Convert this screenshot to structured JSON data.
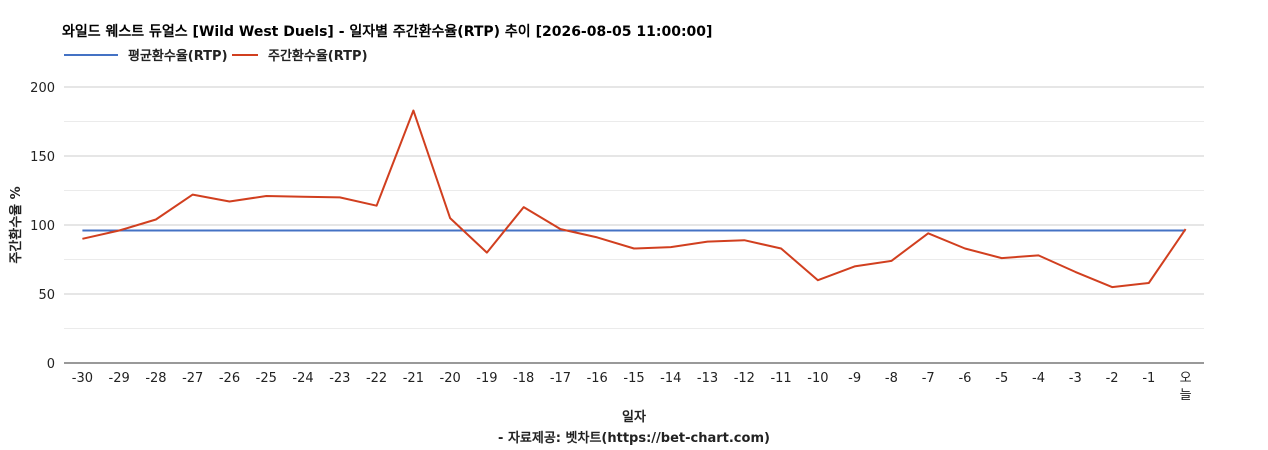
{
  "chart_data": {
    "type": "line",
    "title": "와일드 웨스트 듀얼스 [Wild West Duels] - 일자별 주간환수율(RTP) 추이 [2026-08-05 11:00:00]",
    "xlabel": "일자",
    "ylabel": "주간환수율 %",
    "source": "- 자료제공: 벳차트(https://bet-chart.com)",
    "categories": [
      "-30",
      "-29",
      "-28",
      "-27",
      "-26",
      "-25",
      "-24",
      "-23",
      "-22",
      "-21",
      "-20",
      "-19",
      "-18",
      "-17",
      "-16",
      "-15",
      "-14",
      "-13",
      "-12",
      "-11",
      "-10",
      "-9",
      "-8",
      "-7",
      "-6",
      "-5",
      "-4",
      "-3",
      "-2",
      "-1",
      "오늘"
    ],
    "ylim": [
      0,
      200
    ],
    "yticks": [
      0,
      50,
      100,
      150,
      200
    ],
    "grid": true,
    "legend_position": "top-left",
    "series": [
      {
        "name": "평균환수율(RTP)",
        "color": "#4472C4",
        "values": [
          96,
          96,
          96,
          96,
          96,
          96,
          96,
          96,
          96,
          96,
          96,
          96,
          96,
          96,
          96,
          96,
          96,
          96,
          96,
          96,
          96,
          96,
          96,
          96,
          96,
          96,
          96,
          96,
          96,
          96,
          96
        ]
      },
      {
        "name": "주간환수율(RTP)",
        "color": "#D13F1F",
        "values": [
          90,
          96,
          104,
          122,
          117,
          121,
          120.5,
          120,
          114,
          183,
          105,
          80,
          113,
          97,
          91,
          83,
          84,
          88,
          89,
          83,
          60,
          70,
          74,
          94,
          83,
          76,
          78,
          66,
          55,
          58,
          97
        ]
      }
    ]
  }
}
